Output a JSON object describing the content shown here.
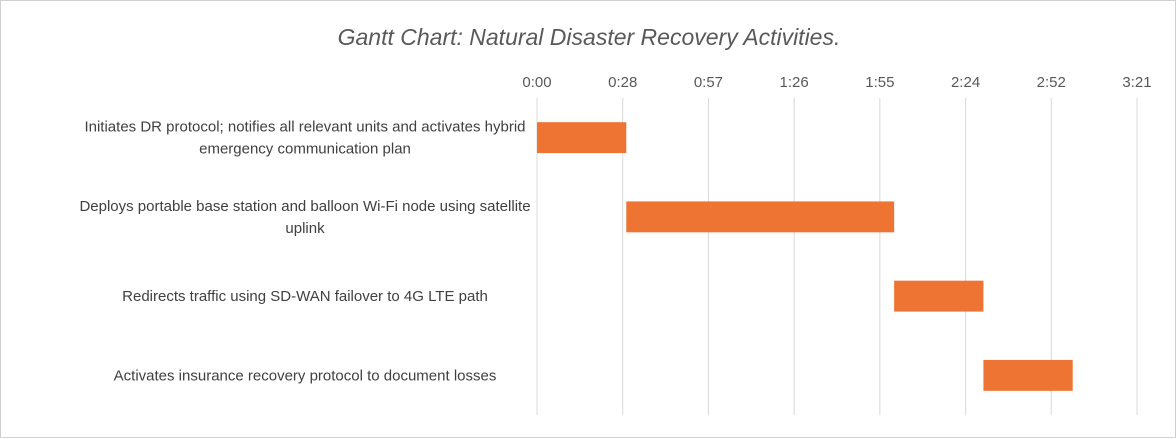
{
  "chart_data": {
    "type": "bar",
    "orientation": "horizontal",
    "title": "Gantt Chart: Natural Disaster Recovery Activities.",
    "xlabel": "",
    "ylabel": "",
    "x_ticks": [
      "0:00",
      "0:28",
      "0:57",
      "1:26",
      "1:55",
      "2:24",
      "2:52",
      "3:21"
    ],
    "xlim_minutes": [
      0,
      201.6
    ],
    "grid": true,
    "legend": "none",
    "bar_color": "#ED7432",
    "categories": [
      [
        "Initiates DR protocol; notifies all relevant units and activates hybrid",
        "emergency communication plan"
      ],
      [
        "Deploys portable base station and balloon Wi-Fi node using satellite",
        "uplink"
      ],
      [
        "Redirects traffic using SD-WAN failover to 4G LTE path"
      ],
      [
        "Activates insurance recovery protocol to document losses"
      ]
    ],
    "series": [
      {
        "start_minutes": [
          0,
          30,
          120,
          150
        ],
        "duration_minutes": [
          30,
          90,
          30,
          30
        ]
      }
    ]
  }
}
